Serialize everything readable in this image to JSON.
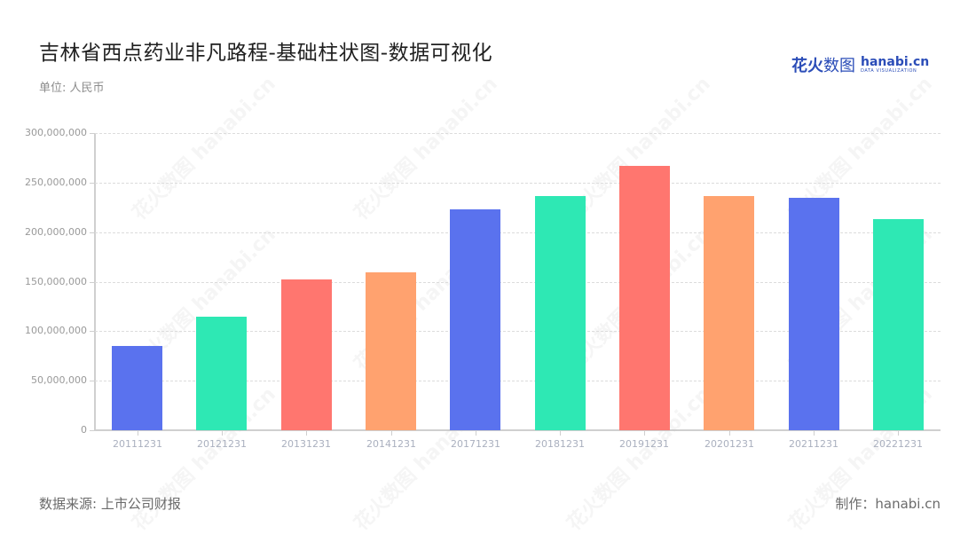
{
  "header": {
    "title": "吉林省西点药业非凡路程-基础柱状图-数据可视化",
    "unit": "单位: 人民币"
  },
  "logo": {
    "cn_bold": "花火",
    "cn_thin": "数图",
    "en_main": "hanabi.cn",
    "en_sub": "DATA VISUALIZATION"
  },
  "footer": {
    "source": "数据来源: 上市公司财报",
    "credit": "制作：hanabi.cn"
  },
  "chart_data": {
    "type": "bar",
    "title": "吉林省西点药业非凡路程-基础柱状图-数据可视化",
    "subtitle": "单位: 人民币",
    "xlabel": "",
    "ylabel": "",
    "ylim": [
      0,
      300000000
    ],
    "yticks": [
      0,
      50000000,
      100000000,
      150000000,
      200000000,
      250000000,
      300000000
    ],
    "ytick_labels": [
      "0",
      "50,000,000",
      "100,000,000",
      "150,000,000",
      "200,000,000",
      "250,000,000",
      "300,000,000"
    ],
    "grid": true,
    "legend": "none",
    "categories": [
      "20111231",
      "20121231",
      "20131231",
      "20141231",
      "20171231",
      "20181231",
      "20191231",
      "20201231",
      "20211231",
      "20221231"
    ],
    "values": [
      85100000,
      114400000,
      152200000,
      159700000,
      223000000,
      236400000,
      266900000,
      236100000,
      234600000,
      213400000
    ],
    "colors": [
      "#5a72ee",
      "#2ee8b4",
      "#ff766f",
      "#ffa26f",
      "#5a72ee",
      "#2ee8b4",
      "#ff766f",
      "#ffa26f",
      "#5a72ee",
      "#2ee8b4"
    ]
  }
}
